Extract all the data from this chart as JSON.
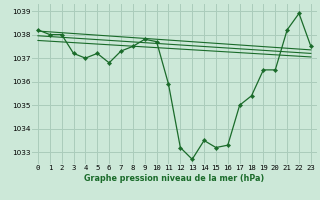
{
  "title": "Graphe pression niveau de la mer (hPa)",
  "bg_color": "#cce8d8",
  "grid_color": "#aaccbb",
  "line_color": "#1a6b2a",
  "xlim": [
    -0.5,
    23.5
  ],
  "ylim": [
    1032.5,
    1039.3
  ],
  "yticks": [
    1033,
    1034,
    1035,
    1036,
    1037,
    1038,
    1039
  ],
  "xtick_labels": [
    "0",
    "1",
    "2",
    "3",
    "4",
    "5",
    "6",
    "7",
    "8",
    "9",
    "10",
    "11",
    "12",
    "13",
    "14",
    "15",
    "16",
    "17",
    "18",
    "19",
    "20",
    "21",
    "22",
    "23"
  ],
  "series1_x": [
    0,
    1,
    2,
    3,
    4,
    5,
    6,
    7,
    8,
    9,
    10,
    11,
    12,
    13,
    14,
    15,
    16,
    17,
    18,
    19,
    20,
    21,
    22,
    23
  ],
  "series1_y": [
    1038.2,
    1038.0,
    1038.0,
    1037.2,
    1037.0,
    1037.2,
    1036.8,
    1037.3,
    1037.5,
    1037.8,
    1037.7,
    1035.9,
    1033.2,
    1032.7,
    1033.5,
    1033.2,
    1033.3,
    1035.0,
    1035.4,
    1036.5,
    1036.5,
    1038.2,
    1038.9,
    1037.5
  ],
  "series2_x": [
    0,
    23
  ],
  "series2_y": [
    1038.15,
    1037.35
  ],
  "series3_x": [
    0,
    23
  ],
  "series3_y": [
    1037.95,
    1037.2
  ],
  "series4_x": [
    0,
    23
  ],
  "series4_y": [
    1037.75,
    1037.05
  ],
  "title_fontsize": 5.8,
  "tick_fontsize": 5.2
}
